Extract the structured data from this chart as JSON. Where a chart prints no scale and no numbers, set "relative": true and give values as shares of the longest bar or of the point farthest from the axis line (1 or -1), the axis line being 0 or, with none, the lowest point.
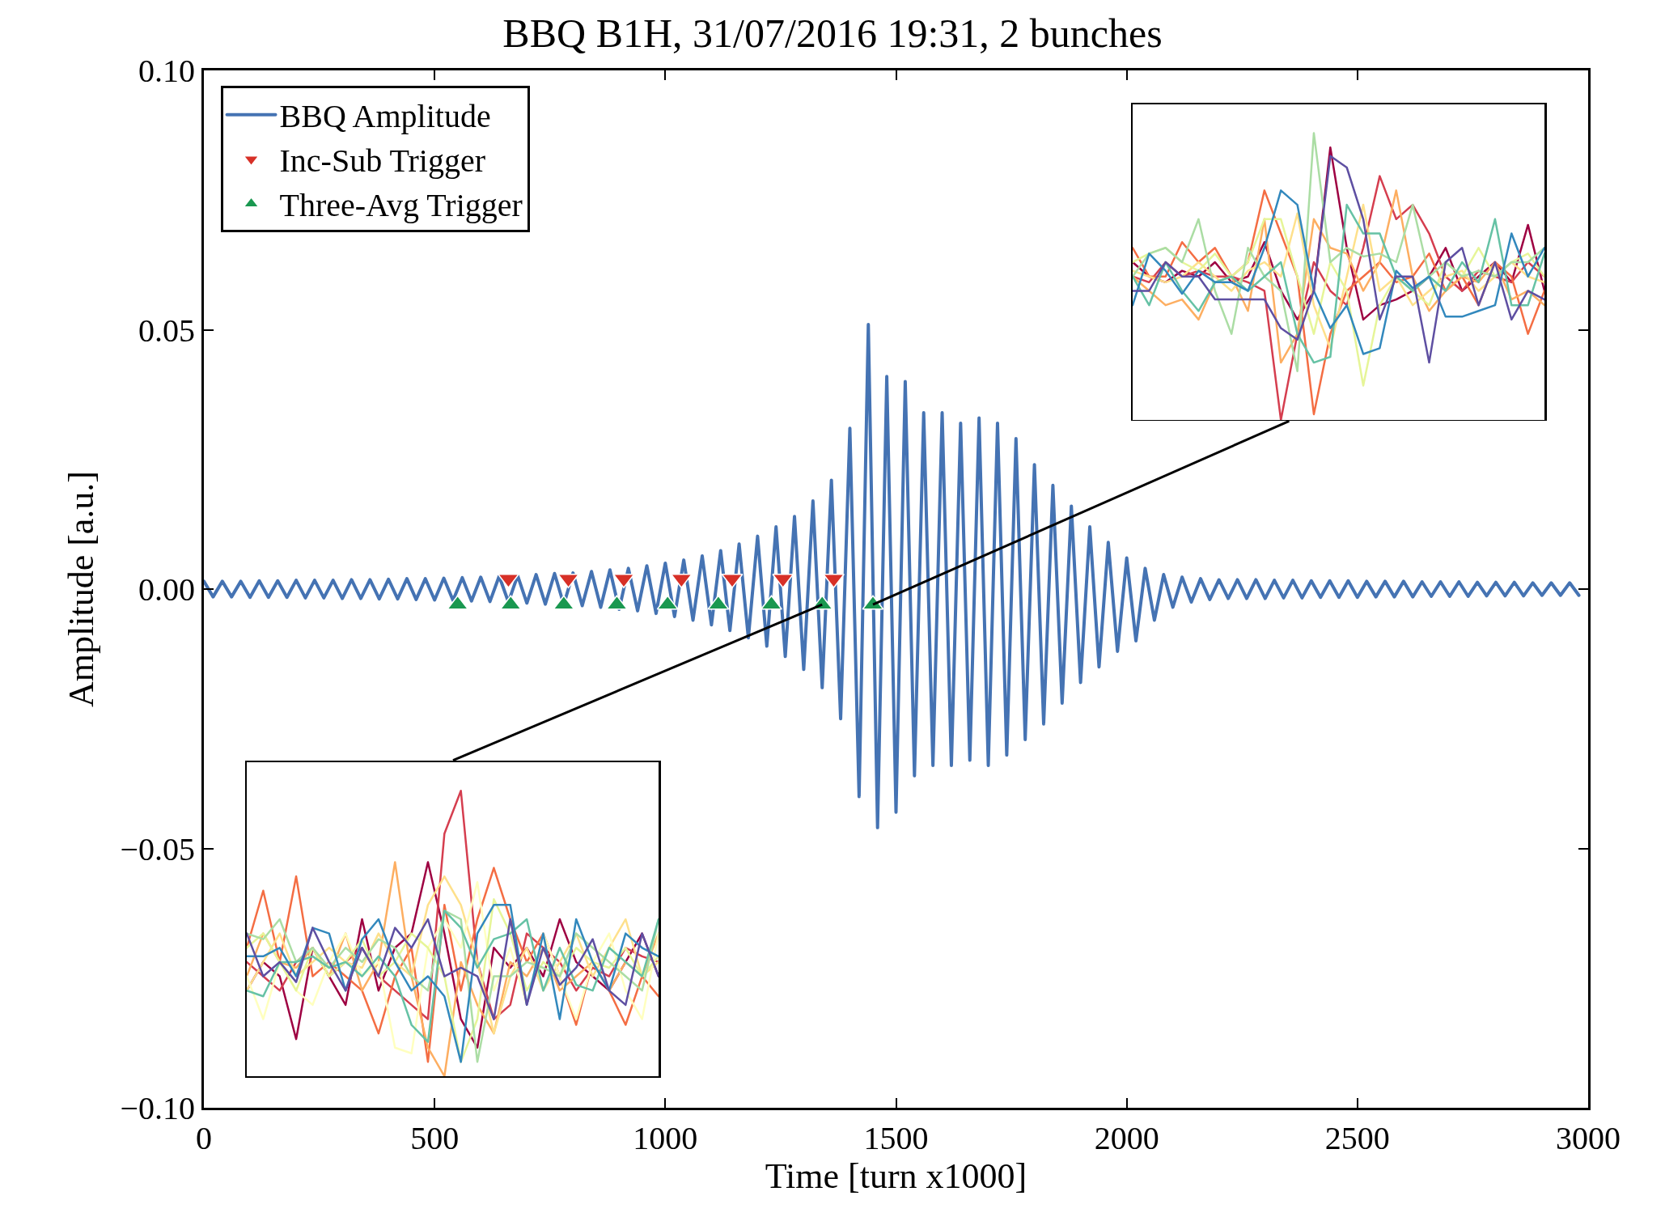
{
  "chart_data": [
    {
      "type": "line",
      "title": "BBQ B1H, 31/07/2016 19:31, 2 bunches",
      "xlabel": "Time [turn x1000]",
      "ylabel": "Amplitude [a.u.]",
      "xlim": [
        0,
        3000
      ],
      "ylim": [
        -0.1,
        0.1
      ],
      "xticks": [
        0,
        500,
        1000,
        1500,
        2000,
        2500,
        3000
      ],
      "yticks": [
        {
          "value": -0.1,
          "label": "−0.10"
        },
        {
          "value": -0.05,
          "label": "−0.05"
        },
        {
          "value": 0,
          "label": "0.00"
        },
        {
          "value": 0.05,
          "label": "0.05"
        },
        {
          "value": 0.1,
          "label": "0.10"
        }
      ],
      "grid": false,
      "legend": "top left",
      "series": [
        {
          "name": "BBQ Amplitude",
          "color": "#4573b3",
          "x": [
            0,
            20,
            40,
            60,
            80,
            100,
            120,
            140,
            160,
            180,
            200,
            220,
            240,
            260,
            280,
            300,
            320,
            340,
            360,
            380,
            400,
            420,
            440,
            460,
            480,
            500,
            520,
            540,
            560,
            580,
            600,
            620,
            640,
            660,
            680,
            700,
            720,
            740,
            760,
            780,
            800,
            820,
            840,
            860,
            880,
            900,
            920,
            940,
            960,
            980,
            1000,
            1020,
            1040,
            1060,
            1080,
            1100,
            1120,
            1140,
            1160,
            1180,
            1200,
            1220,
            1240,
            1260,
            1280,
            1300,
            1320,
            1340,
            1360,
            1380,
            1400,
            1420,
            1440,
            1460,
            1480,
            1500,
            1520,
            1540,
            1560,
            1580,
            1600,
            1620,
            1640,
            1660,
            1680,
            1700,
            1720,
            1740,
            1760,
            1780,
            1800,
            1820,
            1840,
            1860,
            1880,
            1900,
            1920,
            1940,
            1960,
            1980,
            2000,
            2020,
            2040,
            2060,
            2080,
            2100,
            2120,
            2140,
            2160,
            2180,
            2200,
            2220,
            2240,
            2260,
            2280,
            2300,
            2320,
            2340,
            2360,
            2380,
            2400,
            2420,
            2440,
            2460,
            2480,
            2500,
            2520,
            2540,
            2560,
            2580,
            2600,
            2620,
            2640,
            2660,
            2680,
            2700,
            2720,
            2740,
            2760,
            2780,
            2800,
            2820,
            2840,
            2860,
            2880,
            2900,
            2920,
            2940,
            2960,
            2980
          ],
          "values": [
            0.0015,
            -0.0015,
            0.0015,
            -0.0015,
            0.0015,
            -0.0016,
            0.0016,
            -0.0016,
            0.0016,
            -0.0016,
            0.0017,
            -0.0017,
            0.0017,
            -0.0017,
            0.0017,
            -0.0018,
            0.0018,
            -0.0018,
            0.0018,
            -0.0019,
            0.0019,
            -0.0019,
            0.002,
            -0.002,
            0.002,
            -0.0021,
            0.0021,
            -0.0022,
            0.0022,
            -0.0023,
            0.0023,
            -0.0024,
            0.0025,
            -0.0025,
            0.0026,
            -0.0027,
            0.0028,
            -0.0029,
            0.003,
            -0.003,
            0.0031,
            -0.0032,
            0.0034,
            -0.0035,
            0.0037,
            -0.0039,
            0.004,
            -0.0042,
            0.0045,
            -0.0047,
            0.005,
            -0.0053,
            0.0056,
            -0.006,
            0.0064,
            -0.0069,
            0.0074,
            -0.008,
            0.0087,
            -0.0094,
            0.0102,
            -0.011,
            0.012,
            -0.013,
            0.014,
            -0.0155,
            0.017,
            -0.019,
            0.021,
            -0.025,
            0.031,
            -0.04,
            0.051,
            -0.046,
            0.041,
            -0.043,
            0.04,
            -0.036,
            0.034,
            -0.034,
            0.034,
            -0.034,
            0.032,
            -0.033,
            0.033,
            -0.034,
            0.032,
            -0.032,
            0.029,
            -0.029,
            0.024,
            -0.026,
            0.02,
            -0.022,
            0.016,
            -0.018,
            0.012,
            -0.015,
            0.009,
            -0.012,
            0.006,
            -0.01,
            0.004,
            -0.006,
            0.0028,
            -0.0035,
            0.0023,
            -0.0025,
            0.002,
            -0.002,
            0.0018,
            -0.0018,
            0.0018,
            -0.0018,
            0.0018,
            -0.0018,
            0.0017,
            -0.0017,
            0.0017,
            -0.0017,
            0.0016,
            -0.0016,
            0.0016,
            -0.0016,
            0.0016,
            -0.0016,
            0.0015,
            -0.0015,
            0.0015,
            -0.0015,
            0.0015,
            -0.0015,
            0.0014,
            -0.0014,
            0.0014,
            -0.0014,
            0.0014,
            -0.0014,
            0.0013,
            -0.0013,
            0.0013,
            -0.0013,
            0.0013,
            -0.0013,
            0.0012,
            -0.0012,
            0.0012,
            -0.0012,
            0.0012,
            -0.0012
          ]
        },
        {
          "name": "Inc-Sub Trigger",
          "type": "scatter",
          "marker": "triangle-down",
          "color": "#d73027",
          "x": [
            660,
            790,
            910,
            1035,
            1145,
            1255,
            1365
          ],
          "values": [
            0.002,
            0.002,
            0.002,
            0.002,
            0.002,
            0.002,
            0.002
          ]
        },
        {
          "name": "Three-Avg Trigger",
          "type": "scatter",
          "marker": "triangle",
          "color": "#1a9850",
          "x": [
            550,
            665,
            780,
            895,
            1005,
            1115,
            1230,
            1340,
            1450
          ],
          "values": [
            -0.003,
            -0.003,
            -0.003,
            -0.003,
            -0.003,
            -0.003,
            -0.003,
            -0.003,
            -0.003
          ]
        }
      ]
    },
    {
      "type": "line",
      "relative": true,
      "categories": [
        null,
        null,
        null,
        null,
        null,
        null,
        null,
        null,
        null,
        null,
        null,
        null,
        null,
        null,
        null,
        null,
        null,
        null,
        null,
        null,
        null,
        null,
        null,
        null,
        null,
        null
      ],
      "series": [
        {
          "color": "#9e0142",
          "values": [
            0.55,
            0.5,
            0.48,
            0.52,
            0.5,
            0.55,
            0.48,
            0.5,
            0.62,
            0.45,
            0.35,
            0.45,
            0.95,
            0.6,
            0.35,
            0.4,
            0.42,
            0.45,
            0.5,
            0.6,
            0.45,
            0.5,
            0.55,
            0.48,
            0.68,
            0.45
          ]
        },
        {
          "color": "#d53e4f",
          "values": [
            0.5,
            0.48,
            0.55,
            0.5,
            0.52,
            0.5,
            0.5,
            0.48,
            0.45,
            0.0,
            0.3,
            0.55,
            0.45,
            0.4,
            0.6,
            0.85,
            0.7,
            0.75,
            0.65,
            0.5,
            0.45,
            0.52,
            0.5,
            0.48,
            0.55,
            0.5
          ]
        },
        {
          "color": "#f46d43",
          "values": [
            0.6,
            0.5,
            0.5,
            0.62,
            0.55,
            0.6,
            0.5,
            0.55,
            0.8,
            0.65,
            0.5,
            0.02,
            0.3,
            0.45,
            0.5,
            0.55,
            0.48,
            0.5,
            0.58,
            0.45,
            0.5,
            0.4,
            0.55,
            0.5,
            0.3,
            0.45
          ]
        },
        {
          "color": "#fdae61",
          "values": [
            0.5,
            0.45,
            0.4,
            0.42,
            0.35,
            0.48,
            0.5,
            0.38,
            0.7,
            0.2,
            0.3,
            0.7,
            0.6,
            0.58,
            0.45,
            0.55,
            0.8,
            0.5,
            0.38,
            0.45,
            0.5,
            0.48,
            0.55,
            0.42,
            0.45,
            0.4
          ]
        },
        {
          "color": "#fee08b",
          "values": [
            0.52,
            0.5,
            0.48,
            0.5,
            0.55,
            0.5,
            0.45,
            0.52,
            0.55,
            0.5,
            0.72,
            0.4,
            0.25,
            0.5,
            0.75,
            0.45,
            0.5,
            0.4,
            0.45,
            0.5,
            0.52,
            0.45,
            0.5,
            0.55,
            0.5,
            0.48
          ]
        },
        {
          "color": "#e6f598",
          "values": [
            0.55,
            0.58,
            0.6,
            0.55,
            0.52,
            0.58,
            0.5,
            0.55,
            0.7,
            0.7,
            0.5,
            0.3,
            0.55,
            0.45,
            0.12,
            0.4,
            0.5,
            0.45,
            0.4,
            0.55,
            0.5,
            0.6,
            0.5,
            0.55,
            0.58,
            0.5
          ]
        },
        {
          "color": "#abdda4",
          "values": [
            0.5,
            0.58,
            0.6,
            0.55,
            0.7,
            0.45,
            0.3,
            0.6,
            0.5,
            0.45,
            0.17,
            1.0,
            0.55,
            0.6,
            0.57,
            0.58,
            0.55,
            0.75,
            0.5,
            0.55,
            0.5,
            0.52,
            0.5,
            0.55,
            0.55,
            0.6
          ]
        },
        {
          "color": "#66c2a5",
          "values": [
            0.5,
            0.4,
            0.55,
            0.45,
            0.38,
            0.48,
            0.5,
            0.45,
            0.5,
            0.55,
            0.3,
            0.2,
            0.22,
            0.75,
            0.65,
            0.65,
            0.5,
            0.45,
            0.5,
            0.45,
            0.55,
            0.48,
            0.7,
            0.4,
            0.4,
            0.58
          ]
        },
        {
          "color": "#3288bd",
          "values": [
            0.4,
            0.58,
            0.52,
            0.44,
            0.52,
            0.48,
            0.48,
            0.45,
            0.6,
            0.8,
            0.75,
            0.45,
            0.32,
            0.4,
            0.23,
            0.25,
            0.52,
            0.46,
            0.5,
            0.36,
            0.36,
            0.38,
            0.4,
            0.65,
            0.5,
            0.6
          ]
        },
        {
          "color": "#5e4fa2",
          "values": [
            0.45,
            0.45,
            0.55,
            0.5,
            0.5,
            0.42,
            0.42,
            0.42,
            0.42,
            0.32,
            0.28,
            0.45,
            0.92,
            0.88,
            0.7,
            0.35,
            0.5,
            0.5,
            0.2,
            0.55,
            0.6,
            0.4,
            0.55,
            0.35,
            0.45,
            0.42
          ]
        }
      ]
    },
    {
      "type": "line",
      "relative": true,
      "categories": [
        null,
        null,
        null,
        null,
        null,
        null,
        null,
        null,
        null,
        null,
        null,
        null,
        null,
        null,
        null,
        null,
        null,
        null,
        null,
        null,
        null,
        null,
        null,
        null,
        null,
        null
      ],
      "series": [
        {
          "color": "#9e0142",
          "values": [
            0.3,
            0.4,
            0.35,
            0.13,
            0.45,
            0.35,
            0.25,
            0.55,
            0.3,
            0.45,
            0.5,
            0.75,
            0.5,
            0.2,
            0.1,
            0.45,
            0.38,
            0.45,
            0.35,
            0.55,
            0.4,
            0.35,
            0.3,
            0.4,
            0.5,
            0.35
          ]
        },
        {
          "color": "#d53e4f",
          "values": [
            0.4,
            0.35,
            0.3,
            0.4,
            0.45,
            0.35,
            0.4,
            0.45,
            0.35,
            0.3,
            0.25,
            0.2,
            0.85,
            1.0,
            0.4,
            0.2,
            0.25,
            0.5,
            0.45,
            0.4,
            0.3,
            0.38,
            0.35,
            0.45,
            0.42,
            0.4
          ]
        },
        {
          "color": "#f46d43",
          "values": [
            0.45,
            0.65,
            0.4,
            0.7,
            0.35,
            0.4,
            0.35,
            0.3,
            0.15,
            0.35,
            0.45,
            0.05,
            0.6,
            0.3,
            0.55,
            0.73,
            0.55,
            0.4,
            0.5,
            0.35,
            0.18,
            0.4,
            0.3,
            0.18,
            0.35,
            0.28
          ]
        },
        {
          "color": "#fdae61",
          "values": [
            0.35,
            0.5,
            0.4,
            0.38,
            0.45,
            0.35,
            0.5,
            0.3,
            0.4,
            0.75,
            0.35,
            0.1,
            0.0,
            0.4,
            0.25,
            0.15,
            0.4,
            0.35,
            0.45,
            0.3,
            0.35,
            0.4,
            0.3,
            0.4,
            0.35,
            0.5
          ]
        },
        {
          "color": "#fee08b",
          "values": [
            0.3,
            0.4,
            0.5,
            0.35,
            0.4,
            0.45,
            0.4,
            0.38,
            0.5,
            0.4,
            0.35,
            0.6,
            0.7,
            0.6,
            0.4,
            0.15,
            0.35,
            0.45,
            0.3,
            0.4,
            0.5,
            0.35,
            0.45,
            0.55,
            0.35,
            0.4
          ]
        },
        {
          "color": "#ffffbf",
          "values": [
            0.35,
            0.2,
            0.4,
            0.3,
            0.25,
            0.4,
            0.5,
            0.35,
            0.4,
            0.1,
            0.08,
            0.45,
            0.55,
            0.45,
            0.68,
            0.3,
            0.45,
            0.25,
            0.5,
            0.35,
            0.2,
            0.4,
            0.5,
            0.3,
            0.2,
            0.5
          ]
        },
        {
          "color": "#e6f598",
          "values": [
            0.45,
            0.5,
            0.4,
            0.3,
            0.45,
            0.35,
            0.4,
            0.48,
            0.35,
            0.4,
            0.5,
            0.45,
            0.35,
            0.05,
            0.2,
            0.62,
            0.5,
            0.3,
            0.4,
            0.35,
            0.45,
            0.4,
            0.38,
            0.45,
            0.35,
            0.42
          ]
        },
        {
          "color": "#abdda4",
          "values": [
            0.5,
            0.48,
            0.55,
            0.4,
            0.45,
            0.38,
            0.45,
            0.4,
            0.48,
            0.45,
            0.35,
            0.3,
            0.58,
            0.55,
            0.05,
            0.35,
            0.35,
            0.4,
            0.38,
            0.35,
            0.5,
            0.45,
            0.4,
            0.35,
            0.3,
            0.55
          ]
        },
        {
          "color": "#66c2a5",
          "values": [
            0.3,
            0.28,
            0.4,
            0.4,
            0.42,
            0.38,
            0.4,
            0.35,
            0.42,
            0.35,
            0.18,
            0.12,
            0.58,
            0.52,
            0.38,
            0.48,
            0.5,
            0.55,
            0.3,
            0.45,
            0.32,
            0.3,
            0.45,
            0.4,
            0.35,
            0.55
          ]
        },
        {
          "color": "#3288bd",
          "values": [
            0.42,
            0.42,
            0.45,
            0.35,
            0.52,
            0.5,
            0.3,
            0.48,
            0.55,
            0.4,
            0.3,
            0.35,
            0.28,
            0.05,
            0.5,
            0.6,
            0.6,
            0.25,
            0.5,
            0.2,
            0.55,
            0.4,
            0.3,
            0.5,
            0.45,
            0.42
          ]
        },
        {
          "color": "#5e4fa2",
          "values": [
            0.5,
            0.35,
            0.4,
            0.33,
            0.52,
            0.4,
            0.3,
            0.45,
            0.35,
            0.52,
            0.45,
            0.55,
            0.35,
            0.38,
            0.35,
            0.2,
            0.55,
            0.25,
            0.45,
            0.32,
            0.38,
            0.48,
            0.3,
            0.25,
            0.5,
            0.35
          ]
        }
      ]
    }
  ]
}
